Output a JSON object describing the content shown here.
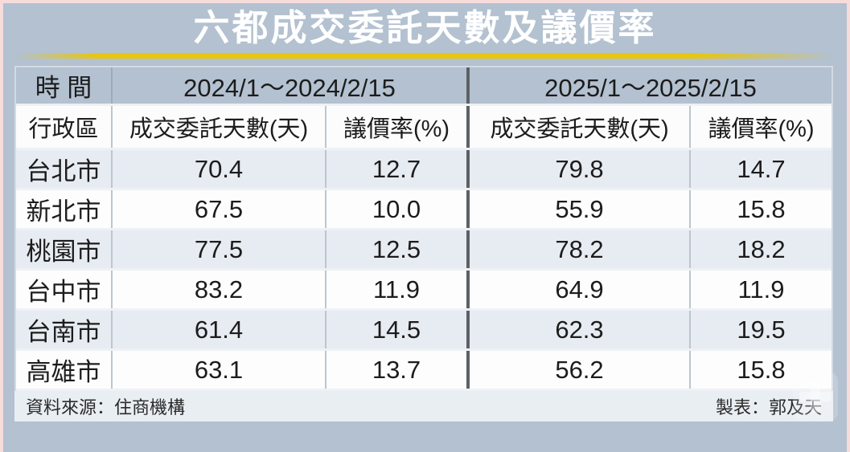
{
  "chart_data": {
    "type": "table",
    "title": "六都成交委託天數及議價率",
    "row_header_label": "時 間",
    "column_groups": [
      "2024/1～2024/2/15",
      "2025/1～2025/2/15"
    ],
    "columns": [
      "行政區",
      "成交委託天數(天)",
      "議價率(%)",
      "成交委託天數(天)",
      "議價率(%)"
    ],
    "rows": [
      [
        "台北市",
        "70.4",
        "12.7",
        "79.8",
        "14.7"
      ],
      [
        "新北市",
        "67.5",
        "10.0",
        "55.9",
        "15.8"
      ],
      [
        "桃園市",
        "77.5",
        "12.5",
        "78.2",
        "18.2"
      ],
      [
        "台中市",
        "83.2",
        "11.9",
        "64.9",
        "11.9"
      ],
      [
        "台南市",
        "61.4",
        "14.5",
        "62.3",
        "19.5"
      ],
      [
        "高雄市",
        "63.1",
        "13.7",
        "56.2",
        "15.8"
      ]
    ],
    "source": "資料來源：住商機構",
    "credit": "製表：郭及天",
    "legend_position": "none",
    "grid": "table-borders"
  },
  "icons": {
    "watermark": "plus-watermark-icon"
  },
  "colors": {
    "frame-bg": "#b3c1d0",
    "frame-border": "#f6dcda",
    "accent-gold": "#e7c60e",
    "header-blue": "#b3c1d0",
    "row-alt": "#e7ecf2",
    "row-white": "#fdfdfd",
    "divider-dark": "#5d6165",
    "footer-bg": "#e9eef3",
    "text-dark": "#1c1c1c",
    "title-white": "#ffffff"
  }
}
